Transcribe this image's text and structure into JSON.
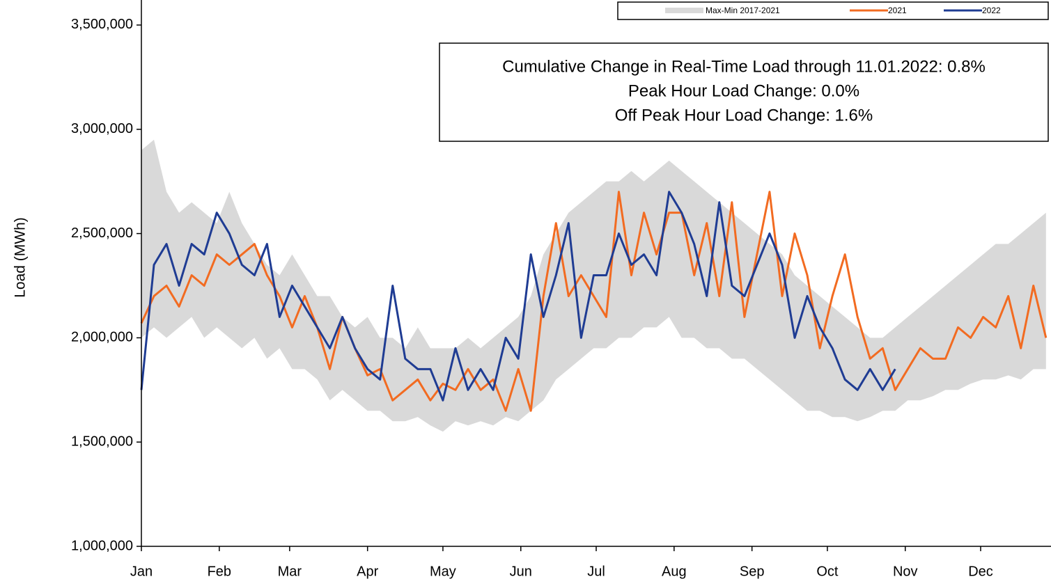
{
  "chart_data": {
    "type": "line",
    "y_label": "Load (MWh)",
    "annotations": [
      "Cumulative Change in Real-Time Load through 11.01.2022: 0.8%",
      "Peak Hour Load Change: 0.0%",
      "Off Peak Hour Load Change: 1.6%"
    ],
    "xlim": [
      0,
      362
    ],
    "xticks": [
      {
        "value": 0,
        "label": "Jan"
      },
      {
        "value": 31,
        "label": "Feb"
      },
      {
        "value": 59,
        "label": "Mar"
      },
      {
        "value": 90,
        "label": "Apr"
      },
      {
        "value": 120,
        "label": "May"
      },
      {
        "value": 151,
        "label": "Jun"
      },
      {
        "value": 181,
        "label": "Jul"
      },
      {
        "value": 212,
        "label": "Aug"
      },
      {
        "value": 243,
        "label": "Sep"
      },
      {
        "value": 273,
        "label": "Oct"
      },
      {
        "value": 304,
        "label": "Nov"
      },
      {
        "value": 334,
        "label": "Dec"
      }
    ],
    "ylim": [
      1000000,
      3600000
    ],
    "yticks": [
      {
        "value": 1000000,
        "label": "1,000,000"
      },
      {
        "value": 1500000,
        "label": "1,500,000"
      },
      {
        "value": 2000000,
        "label": "2,000,000"
      },
      {
        "value": 2500000,
        "label": "2,500,000"
      },
      {
        "value": 3000000,
        "label": "3,000,000"
      },
      {
        "value": 3500000,
        "label": "3,500,000"
      }
    ],
    "x": [
      0,
      5,
      10,
      15,
      20,
      25,
      30,
      35,
      40,
      45,
      50,
      55,
      60,
      65,
      70,
      75,
      80,
      85,
      90,
      95,
      100,
      105,
      110,
      115,
      120,
      125,
      130,
      135,
      140,
      145,
      150,
      155,
      160,
      165,
      170,
      175,
      180,
      185,
      190,
      195,
      200,
      205,
      210,
      215,
      220,
      225,
      230,
      235,
      240,
      245,
      250,
      255,
      260,
      265,
      270,
      275,
      280,
      285,
      290,
      295,
      300,
      305,
      310,
      315,
      320,
      325,
      330,
      335,
      340,
      345,
      350,
      355,
      360
    ],
    "band": {
      "name": "Max-Min 2017-2021",
      "color": "#d9d9d9",
      "max": [
        2900000,
        2950000,
        2700000,
        2600000,
        2650000,
        2600000,
        2550000,
        2700000,
        2550000,
        2450000,
        2350000,
        2300000,
        2400000,
        2300000,
        2200000,
        2200000,
        2100000,
        2050000,
        2100000,
        2000000,
        2000000,
        1950000,
        2050000,
        1950000,
        1950000,
        1950000,
        2000000,
        1950000,
        2000000,
        2050000,
        2100000,
        2200000,
        2400000,
        2500000,
        2600000,
        2650000,
        2700000,
        2750000,
        2750000,
        2800000,
        2750000,
        2800000,
        2850000,
        2800000,
        2750000,
        2700000,
        2650000,
        2600000,
        2550000,
        2500000,
        2450000,
        2400000,
        2300000,
        2250000,
        2200000,
        2150000,
        2100000,
        2050000,
        2000000,
        2000000,
        2050000,
        2100000,
        2150000,
        2200000,
        2250000,
        2300000,
        2350000,
        2400000,
        2450000,
        2450000,
        2500000,
        2550000,
        2600000
      ],
      "min": [
        2000000,
        2050000,
        2000000,
        2050000,
        2100000,
        2000000,
        2050000,
        2000000,
        1950000,
        2000000,
        1900000,
        1950000,
        1850000,
        1850000,
        1800000,
        1700000,
        1750000,
        1700000,
        1650000,
        1650000,
        1600000,
        1600000,
        1620000,
        1580000,
        1550000,
        1600000,
        1580000,
        1600000,
        1580000,
        1620000,
        1600000,
        1650000,
        1700000,
        1800000,
        1850000,
        1900000,
        1950000,
        1950000,
        2000000,
        2000000,
        2050000,
        2050000,
        2100000,
        2000000,
        2000000,
        1950000,
        1950000,
        1900000,
        1900000,
        1850000,
        1800000,
        1750000,
        1700000,
        1650000,
        1650000,
        1620000,
        1620000,
        1600000,
        1620000,
        1650000,
        1650000,
        1700000,
        1700000,
        1720000,
        1750000,
        1750000,
        1780000,
        1800000,
        1800000,
        1820000,
        1800000,
        1850000,
        1850000
      ]
    },
    "series": [
      {
        "name": "2021",
        "color": "#f26b21",
        "values": [
          2070000,
          2200000,
          2250000,
          2150000,
          2300000,
          2250000,
          2400000,
          2350000,
          2400000,
          2450000,
          2300000,
          2200000,
          2050000,
          2200000,
          2050000,
          1850000,
          2100000,
          1950000,
          1820000,
          1850000,
          1700000,
          1750000,
          1800000,
          1700000,
          1780000,
          1750000,
          1850000,
          1750000,
          1800000,
          1650000,
          1850000,
          1650000,
          2200000,
          2550000,
          2200000,
          2300000,
          2200000,
          2100000,
          2700000,
          2300000,
          2600000,
          2400000,
          2600000,
          2600000,
          2300000,
          2550000,
          2200000,
          2650000,
          2100000,
          2400000,
          2700000,
          2200000,
          2500000,
          2300000,
          1950000,
          2200000,
          2400000,
          2100000,
          1900000,
          1950000,
          1750000,
          1850000,
          1950000,
          1900000,
          1900000,
          2050000,
          2000000,
          2100000,
          2050000,
          2200000,
          1950000,
          2250000,
          2000000
        ]
      },
      {
        "name": "2022",
        "color": "#1f3c93",
        "values": [
          1750000,
          2350000,
          2450000,
          2250000,
          2450000,
          2400000,
          2600000,
          2500000,
          2350000,
          2300000,
          2450000,
          2100000,
          2250000,
          2150000,
          2050000,
          1950000,
          2100000,
          1950000,
          1850000,
          1800000,
          2250000,
          1900000,
          1850000,
          1850000,
          1700000,
          1950000,
          1750000,
          1850000,
          1750000,
          2000000,
          1900000,
          2400000,
          2100000,
          2300000,
          2550000,
          2000000,
          2300000,
          2300000,
          2500000,
          2350000,
          2400000,
          2300000,
          2700000,
          2600000,
          2450000,
          2200000,
          2650000,
          2250000,
          2200000,
          2350000,
          2500000,
          2350000,
          2000000,
          2200000,
          2050000,
          1950000,
          1800000,
          1750000,
          1850000,
          1750000,
          1850000,
          null,
          null,
          null,
          null,
          null,
          null,
          null,
          null,
          null,
          null,
          null,
          null
        ]
      }
    ]
  }
}
